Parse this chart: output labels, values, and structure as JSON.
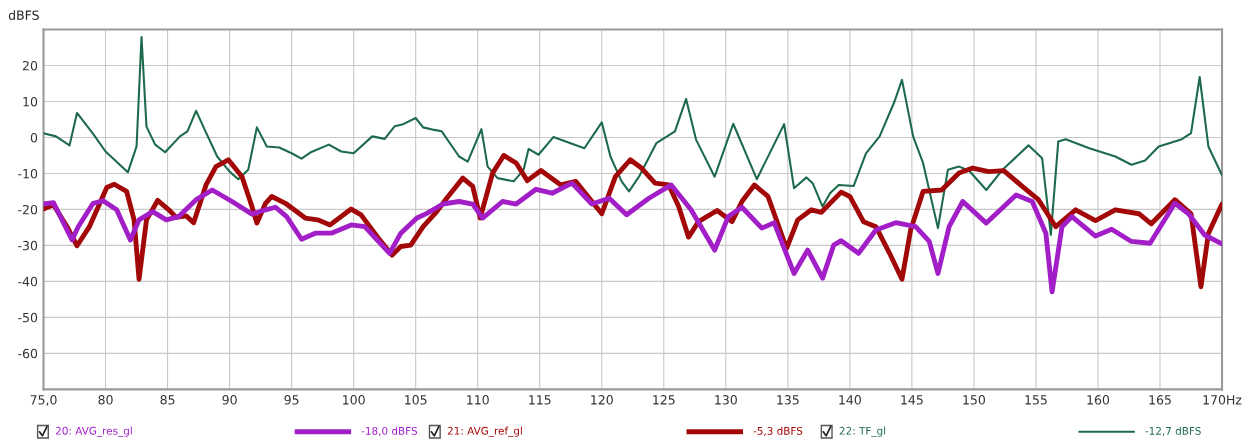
{
  "chart_data": {
    "type": "line",
    "ylabel": "dBFS",
    "xlim": [
      75,
      170
    ],
    "ylim": [
      -70,
      30
    ],
    "xticks": [
      {
        "value": 75,
        "label": "75,0"
      },
      80,
      85,
      90,
      95,
      100,
      105,
      110,
      115,
      120,
      125,
      130,
      135,
      140,
      145,
      150,
      155,
      160,
      165,
      {
        "value": 170,
        "label": "170Hz"
      }
    ],
    "yticks": [
      {
        "value": -70,
        "label": null
      },
      -60,
      -50,
      -40,
      -30,
      -20,
      -10,
      0,
      10,
      20,
      {
        "value": 30,
        "label": null
      }
    ],
    "grid": true,
    "legend": "bottom",
    "line_style": "solid",
    "marker": "none",
    "annotations": [
      "-18,0 dBFS",
      "-5,3 dBFS",
      "-12,7 dBFS"
    ],
    "series": [
      {
        "name": "20: AVG_res_gl",
        "color": "#a21fc8",
        "x": [
          75.0,
          75.8,
          77.3,
          77.8,
          79.0,
          79.8,
          80.9,
          82.0,
          82.7,
          83.8,
          84.9,
          85.9,
          87.3,
          88.6,
          90.2,
          91.8,
          92.9,
          93.7,
          94.6,
          95.8,
          96.9,
          98.2,
          99.8,
          100.9,
          101.9,
          102.9,
          103.8,
          105.1,
          105.9,
          107.2,
          108.5,
          109.6,
          110.4,
          112.0,
          113.1,
          114.7,
          116.0,
          117.6,
          119.2,
          120.6,
          122.0,
          123.8,
          125.6,
          127.2,
          129.1,
          130.2,
          131.3,
          132.9,
          133.9,
          135.5,
          136.6,
          137.8,
          138.7,
          139.3,
          140.7,
          142.1,
          143.7,
          145.3,
          146.4,
          147.1,
          148.0,
          149.1,
          151.0,
          153.4,
          154.7,
          155.8,
          156.3,
          157.1,
          157.9,
          159.8,
          161.1,
          162.7,
          164.2,
          166.2,
          167.3,
          168.6,
          170.0
        ],
        "values": [
          -18.5,
          -18.1,
          -28.5,
          -24.8,
          -18.3,
          -17.6,
          -20.1,
          -28.5,
          -22.9,
          -20.6,
          -22.9,
          -22.0,
          -17.3,
          -14.6,
          -17.8,
          -21.3,
          -20.1,
          -19.4,
          -22.0,
          -28.3,
          -26.6,
          -26.6,
          -24.3,
          -24.8,
          -28.5,
          -32.2,
          -26.6,
          -22.4,
          -21.1,
          -18.5,
          -17.8,
          -18.5,
          -22.4,
          -17.8,
          -18.5,
          -14.4,
          -15.5,
          -12.7,
          -18.5,
          -16.9,
          -21.5,
          -16.9,
          -13.2,
          -20.1,
          -31.3,
          -22.0,
          -19.4,
          -25.2,
          -23.7,
          -37.8,
          -31.3,
          -39.1,
          -29.9,
          -28.7,
          -32.2,
          -25.7,
          -23.7,
          -24.8,
          -28.9,
          -37.8,
          -24.8,
          -17.8,
          -23.8,
          -16.0,
          -17.8,
          -26.6,
          -42.9,
          -24.8,
          -22.0,
          -27.4,
          -25.5,
          -28.9,
          -29.4,
          -18.3,
          -21.2,
          -27.1,
          -29.6
        ]
      },
      {
        "name": "21: AVG_ref_gl",
        "color": "#a30808",
        "x": [
          75.0,
          75.8,
          76.9,
          77.7,
          78.7,
          80.1,
          80.7,
          81.7,
          82.3,
          82.7,
          83.3,
          84.2,
          85.1,
          85.7,
          86.5,
          87.1,
          88.1,
          88.9,
          89.9,
          91.0,
          91.8,
          92.2,
          92.9,
          93.4,
          94.5,
          96.1,
          97.1,
          98.1,
          99.8,
          100.6,
          101.9,
          103.1,
          103.8,
          104.6,
          105.6,
          106.7,
          107.5,
          108.8,
          109.6,
          110.2,
          111.2,
          112.1,
          113.1,
          114.0,
          115.1,
          116.7,
          117.9,
          119.1,
          120.0,
          121.1,
          122.3,
          123.2,
          124.3,
          125.4,
          126.2,
          127.0,
          127.8,
          129.3,
          130.5,
          131.3,
          132.3,
          133.4,
          134.9,
          135.8,
          136.9,
          137.7,
          139.3,
          140.0,
          141.1,
          142.1,
          143.2,
          144.2,
          144.9,
          145.9,
          147.4,
          148.8,
          149.9,
          151.2,
          152.4,
          153.9,
          155.2,
          156.6,
          158.2,
          159.8,
          161.4,
          163.3,
          164.3,
          166.2,
          167.5,
          168.3,
          168.9,
          170.0
        ],
        "values": [
          -19.9,
          -18.7,
          -24.8,
          -30.1,
          -24.8,
          -13.9,
          -13.0,
          -15.0,
          -22.9,
          -39.4,
          -22.9,
          -17.5,
          -20.1,
          -22.2,
          -21.8,
          -23.7,
          -13.2,
          -8.1,
          -6.2,
          -10.9,
          -19.2,
          -23.8,
          -18.3,
          -16.4,
          -18.3,
          -22.4,
          -22.9,
          -24.3,
          -19.9,
          -21.5,
          -27.6,
          -32.7,
          -30.3,
          -29.9,
          -24.8,
          -20.6,
          -16.9,
          -11.3,
          -13.6,
          -22.4,
          -9.9,
          -5.0,
          -7.1,
          -12.0,
          -9.2,
          -13.2,
          -12.2,
          -17.3,
          -21.2,
          -10.9,
          -6.2,
          -8.5,
          -12.7,
          -13.2,
          -19.2,
          -27.7,
          -23.4,
          -20.3,
          -23.4,
          -17.8,
          -13.2,
          -16.4,
          -30.8,
          -22.9,
          -20.1,
          -20.8,
          -15.2,
          -16.4,
          -23.4,
          -24.8,
          -32.2,
          -39.4,
          -25.7,
          -15.0,
          -14.6,
          -9.9,
          -8.5,
          -9.5,
          -9.2,
          -13.6,
          -17.3,
          -24.8,
          -20.1,
          -23.1,
          -20.1,
          -21.2,
          -24.0,
          -17.3,
          -21.2,
          -41.5,
          -26.7,
          -18.5
        ]
      },
      {
        "name": "22: TF_gl",
        "color": "#1d6b4c",
        "x": [
          75.0,
          76.0,
          77.1,
          77.7,
          79.0,
          80.0,
          81.8,
          82.5,
          82.9,
          83.3,
          84.0,
          84.8,
          86.0,
          86.6,
          87.3,
          88.0,
          89.0,
          90.0,
          90.7,
          91.5,
          92.2,
          93.0,
          94.0,
          95.0,
          95.8,
          96.5,
          98.0,
          99.0,
          100.0,
          101.5,
          102.5,
          103.3,
          104.0,
          105.0,
          105.6,
          106.5,
          107.1,
          108.5,
          109.2,
          110.3,
          110.8,
          111.6,
          112.9,
          113.7,
          114.1,
          114.9,
          116.1,
          117.1,
          118.6,
          120.0,
          120.7,
          121.6,
          122.2,
          123.0,
          124.4,
          125.9,
          126.8,
          127.6,
          129.1,
          130.6,
          132.5,
          134.7,
          135.5,
          136.5,
          137.0,
          137.8,
          138.4,
          139.1,
          140.3,
          141.3,
          142.4,
          143.6,
          144.2,
          145.1,
          145.9,
          147.1,
          147.9,
          148.8,
          149.6,
          151.0,
          152.3,
          154.4,
          155.5,
          156.2,
          156.8,
          157.4,
          159.3,
          161.4,
          162.7,
          163.8,
          164.9,
          166.7,
          167.5,
          168.2,
          168.9,
          170.0
        ],
        "values": [
          1.2,
          0.3,
          -2.2,
          6.8,
          1.0,
          -3.9,
          -9.7,
          -2.5,
          27.9,
          3.0,
          -2.0,
          -4.1,
          0.3,
          1.7,
          7.4,
          2.1,
          -5.3,
          -9.5,
          -11.6,
          -9.0,
          2.8,
          -2.5,
          -2.8,
          -4.4,
          -5.9,
          -4.2,
          -2.0,
          -3.9,
          -4.4,
          0.3,
          -0.4,
          3.1,
          3.7,
          5.4,
          2.8,
          2.1,
          1.7,
          -5.3,
          -6.7,
          2.3,
          -8.1,
          -11.3,
          -12.2,
          -9.0,
          -3.2,
          -4.8,
          0.1,
          -1.1,
          -3.0,
          4.2,
          -5.3,
          -12.2,
          -15.0,
          -10.9,
          -1.6,
          1.7,
          10.7,
          -0.6,
          -10.9,
          3.8,
          -11.6,
          3.7,
          -14.1,
          -11.1,
          -12.7,
          -19.2,
          -15.5,
          -13.2,
          -13.5,
          -4.4,
          0.3,
          10.0,
          16.0,
          0.3,
          -7.1,
          -25.2,
          -9.0,
          -8.1,
          -9.2,
          -14.6,
          -9.0,
          -2.2,
          -5.8,
          -27.1,
          -1.1,
          -0.5,
          -3.0,
          -5.3,
          -7.6,
          -6.4,
          -2.5,
          -0.6,
          1.2,
          16.8,
          -2.5,
          -10.5
        ]
      }
    ]
  }
}
